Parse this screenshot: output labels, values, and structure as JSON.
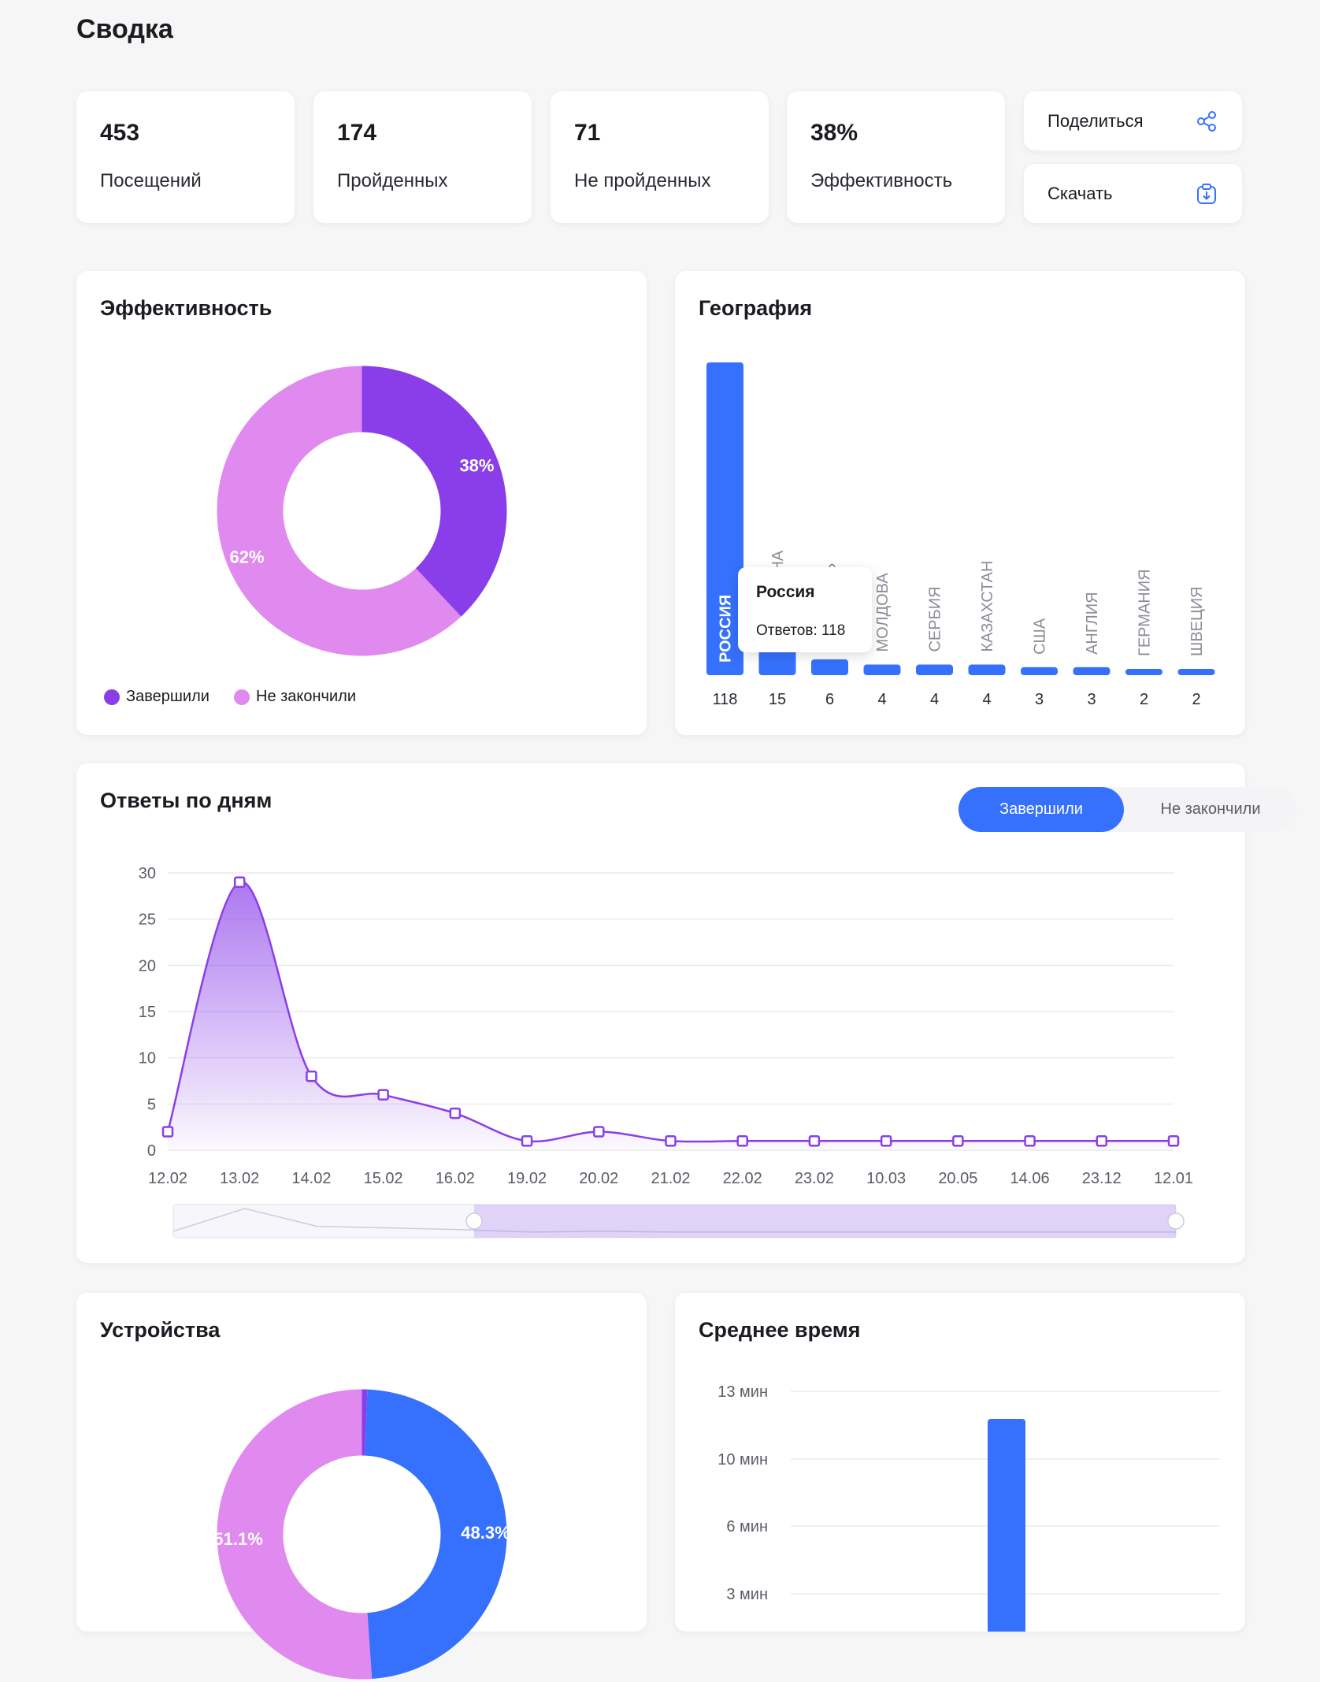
{
  "page": {
    "title": "Сводка"
  },
  "stats": [
    {
      "value": "453",
      "label": "Посещений"
    },
    {
      "value": "174",
      "label": "Пройденных"
    },
    {
      "value": "71",
      "label": "Не пройденных"
    },
    {
      "value": "38%",
      "label": "Эффективность"
    }
  ],
  "actions": {
    "share_label": "Поделиться",
    "download_label": "Скачать"
  },
  "efficiency": {
    "title": "Эффективность",
    "legend": [
      "Завершили",
      "Не закончили"
    ],
    "colors": [
      "#8a3eea",
      "#e08af0"
    ],
    "chart_data": {
      "type": "pie",
      "categories": [
        "Завершили",
        "Не закончили"
      ],
      "values": [
        38,
        62
      ],
      "labels": [
        "38%",
        "62%"
      ]
    }
  },
  "geography": {
    "title": "География",
    "bar_color": "#3671fd",
    "tooltip": {
      "title": "Россия",
      "text": "Ответов: 118"
    },
    "chart_data": {
      "type": "bar",
      "categories": [
        "РОССИЯ",
        "УКРАИНА",
        "БЕЛАРУСЬ",
        "МОЛДОВА",
        "СЕРБИЯ",
        "КАЗАХСТАН",
        "США",
        "АНГЛИЯ",
        "ГЕРМАНИЯ",
        "ШВЕЦИЯ"
      ],
      "values": [
        118,
        15,
        6,
        4,
        4,
        4,
        3,
        3,
        2,
        2
      ]
    }
  },
  "daily": {
    "title": "Ответы по дням",
    "tabs": [
      "Завершили",
      "Не закончили"
    ],
    "line_color": "#8a3eea",
    "chart_data": {
      "type": "area",
      "x": [
        "12.02",
        "13.02",
        "14.02",
        "15.02",
        "16.02",
        "19.02",
        "20.02",
        "21.02",
        "22.02",
        "23.02",
        "10.03",
        "20.05",
        "14.06",
        "23.12",
        "12.01"
      ],
      "values": [
        2,
        29,
        8,
        6,
        4,
        1,
        2,
        1,
        1,
        1,
        1,
        1,
        1,
        1,
        1
      ],
      "yticks": [
        "0",
        "5",
        "10",
        "15",
        "20",
        "25",
        "30"
      ],
      "ylim": [
        0,
        30
      ],
      "grid": true
    }
  },
  "devices": {
    "title": "Устройства",
    "colors": [
      "#8a3eea",
      "#3671fd",
      "#e08af0"
    ],
    "chart_data": {
      "type": "pie",
      "values": [
        0.6,
        48.3,
        51.1
      ],
      "labels": [
        "",
        "48.3%",
        "51.1%"
      ]
    }
  },
  "avg_time": {
    "title": "Среднее время",
    "bar_color": "#3671fd",
    "chart_data": {
      "type": "bar",
      "yticks": [
        "13 мин",
        "10 мин",
        "6 мин",
        "3 мин"
      ]
    }
  }
}
